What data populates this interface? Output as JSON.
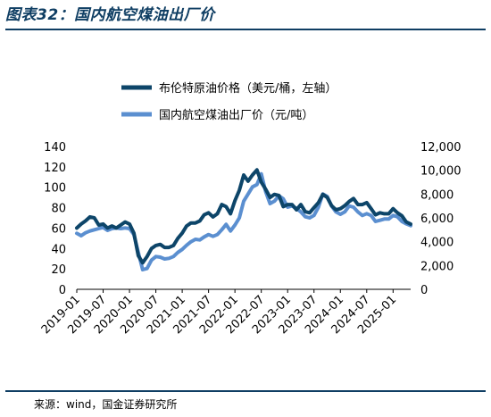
{
  "figure": {
    "title": "图表32：国内航空煤油出厂价",
    "source": "来源：wind，国金证券研究所"
  },
  "colors": {
    "brent": "#0d4569",
    "jet_fuel": "#5b8fd0",
    "title": "#0f3e63"
  },
  "chart_data": {
    "type": "line",
    "xlabel": "",
    "ylabel": "",
    "x_ticks": [
      "2019-01",
      "2019-07",
      "2020-01",
      "2020-07",
      "2021-01",
      "2021-07",
      "2022-01",
      "2022-07",
      "2023-01",
      "2023-07",
      "2024-01",
      "2024-07",
      "2025-01"
    ],
    "left_axis": {
      "ylim": [
        0,
        140
      ],
      "ticks": [
        "0",
        "20",
        "40",
        "60",
        "80",
        "100",
        "120",
        "140"
      ]
    },
    "right_axis": {
      "ylim": [
        0,
        12000
      ],
      "ticks": [
        "0",
        "2,000",
        "4,000",
        "6,000",
        "8,000",
        "10,000",
        "12,000"
      ]
    },
    "legend_position": "top",
    "grid": false,
    "series": [
      {
        "name": "布伦特原油价格（美元/桶，左轴）",
        "axis": "left",
        "x": [
          "2019-01",
          "2019-02",
          "2019-03",
          "2019-04",
          "2019-05",
          "2019-06",
          "2019-07",
          "2019-08",
          "2019-09",
          "2019-10",
          "2019-11",
          "2019-12",
          "2020-01",
          "2020-02",
          "2020-03",
          "2020-04",
          "2020-05",
          "2020-06",
          "2020-07",
          "2020-08",
          "2020-09",
          "2020-10",
          "2020-11",
          "2020-12",
          "2021-01",
          "2021-02",
          "2021-03",
          "2021-04",
          "2021-05",
          "2021-06",
          "2021-07",
          "2021-08",
          "2021-09",
          "2021-10",
          "2021-11",
          "2021-12",
          "2022-01",
          "2022-02",
          "2022-03",
          "2022-04",
          "2022-05",
          "2022-06",
          "2022-07",
          "2022-08",
          "2022-09",
          "2022-10",
          "2022-11",
          "2022-12",
          "2023-01",
          "2023-02",
          "2023-03",
          "2023-04",
          "2023-05",
          "2023-06",
          "2023-07",
          "2023-08",
          "2023-09",
          "2023-10",
          "2023-11",
          "2023-12",
          "2024-01",
          "2024-02",
          "2024-03",
          "2024-04",
          "2024-05",
          "2024-06",
          "2024-07",
          "2024-08",
          "2024-09",
          "2024-10",
          "2024-11",
          "2024-12",
          "2025-01",
          "2025-02",
          "2025-03",
          "2025-04",
          "2025-05"
        ],
        "y": [
          60,
          64,
          67,
          71,
          70,
          63,
          64,
          60,
          62,
          60,
          63,
          66,
          64,
          55,
          33,
          26,
          32,
          40,
          43,
          44,
          41,
          41,
          43,
          50,
          55,
          62,
          65,
          65,
          67,
          73,
          75,
          71,
          74,
          83,
          81,
          74,
          87,
          97,
          112,
          106,
          112,
          117,
          105,
          98,
          90,
          93,
          92,
          81,
          83,
          83,
          78,
          83,
          76,
          75,
          80,
          85,
          93,
          90,
          82,
          78,
          79,
          82,
          86,
          89,
          83,
          83,
          85,
          79,
          73,
          75,
          74,
          74,
          79,
          75,
          72,
          66,
          64
        ]
      },
      {
        "name": "国内航空煤油出厂价（元/吨）",
        "axis": "right",
        "x": [
          "2019-01",
          "2019-02",
          "2019-03",
          "2019-04",
          "2019-05",
          "2019-06",
          "2019-07",
          "2019-08",
          "2019-09",
          "2019-10",
          "2019-11",
          "2019-12",
          "2020-01",
          "2020-02",
          "2020-03",
          "2020-04",
          "2020-05",
          "2020-06",
          "2020-07",
          "2020-08",
          "2020-09",
          "2020-10",
          "2020-11",
          "2020-12",
          "2021-01",
          "2021-02",
          "2021-03",
          "2021-04",
          "2021-05",
          "2021-06",
          "2021-07",
          "2021-08",
          "2021-09",
          "2021-10",
          "2021-11",
          "2021-12",
          "2022-01",
          "2022-02",
          "2022-03",
          "2022-04",
          "2022-05",
          "2022-06",
          "2022-07",
          "2022-08",
          "2022-09",
          "2022-10",
          "2022-11",
          "2022-12",
          "2023-01",
          "2023-02",
          "2023-03",
          "2023-04",
          "2023-05",
          "2023-06",
          "2023-07",
          "2023-08",
          "2023-09",
          "2023-10",
          "2023-11",
          "2023-12",
          "2024-01",
          "2024-02",
          "2024-03",
          "2024-04",
          "2024-05",
          "2024-06",
          "2024-07",
          "2024-08",
          "2024-09",
          "2024-10",
          "2024-11",
          "2024-12",
          "2025-01",
          "2025-02",
          "2025-03",
          "2025-04",
          "2025-05"
        ],
        "y": [
          4700,
          4500,
          4750,
          4900,
          5000,
          5100,
          5200,
          4950,
          5100,
          5150,
          5100,
          5150,
          5100,
          4600,
          3100,
          1650,
          1750,
          2450,
          2750,
          2700,
          2550,
          2600,
          2750,
          3100,
          3350,
          3700,
          4000,
          4200,
          4150,
          4400,
          4600,
          4450,
          4600,
          5000,
          5450,
          4900,
          5400,
          6000,
          7400,
          8000,
          8600,
          8800,
          9700,
          8200,
          7200,
          7400,
          7850,
          7600,
          6900,
          7000,
          6800,
          6500,
          6100,
          6000,
          6200,
          6900,
          8000,
          7800,
          7000,
          6500,
          6300,
          6500,
          7000,
          6900,
          6500,
          6200,
          6350,
          6200,
          5700,
          5800,
          5900,
          5900,
          6200,
          6100,
          5700,
          5500,
          5350
        ]
      }
    ]
  }
}
